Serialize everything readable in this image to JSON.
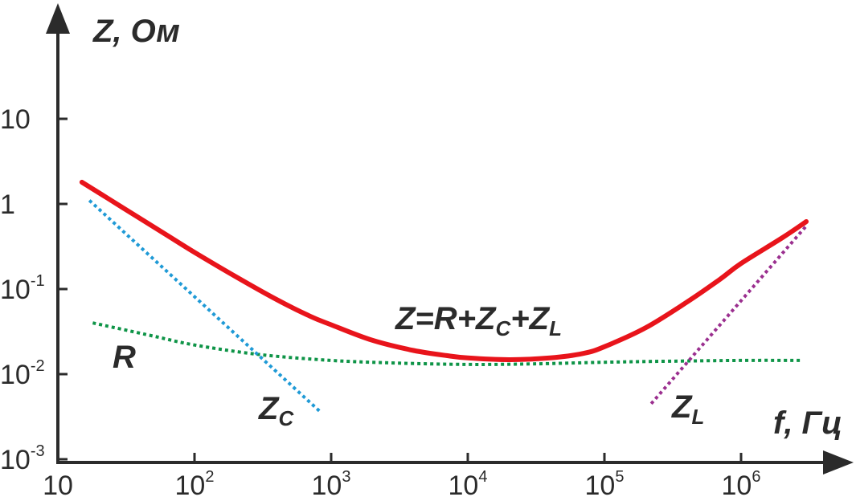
{
  "chart_data": {
    "type": "line",
    "title": "",
    "xlabel": "f, Гц",
    "ylabel": "Z, Ом",
    "x_scale": "log",
    "y_scale": "log",
    "xlim": [
      10,
      3000000
    ],
    "ylim": [
      0.001,
      200
    ],
    "x_ticks": [
      {
        "value": 10,
        "base": "10",
        "exp": ""
      },
      {
        "value": 100,
        "base": "10",
        "exp": "2"
      },
      {
        "value": 1000,
        "base": "10",
        "exp": "3"
      },
      {
        "value": 10000,
        "base": "10",
        "exp": "4"
      },
      {
        "value": 100000,
        "base": "10",
        "exp": "5"
      },
      {
        "value": 1000000,
        "base": "10",
        "exp": "6"
      }
    ],
    "y_ticks": [
      {
        "value": 10,
        "base": "10",
        "exp": ""
      },
      {
        "value": 1,
        "base": "1",
        "exp": ""
      },
      {
        "value": 0.1,
        "base": "10",
        "exp": "-1"
      },
      {
        "value": 0.01,
        "base": "10",
        "exp": "-2"
      },
      {
        "value": 0.001,
        "base": "10",
        "exp": "-3"
      }
    ],
    "grid": false,
    "legend": "none",
    "series": [
      {
        "name": "Z=R+ZC+ZL",
        "label_main": "Z=R+Z",
        "label_sub1": "C",
        "label_mid": "+Z",
        "label_sub2": "L",
        "style": "solid",
        "color": "#e8141b",
        "x": [
          15,
          30,
          60,
          100,
          200,
          400,
          700,
          1000,
          2000,
          4000,
          7000,
          10000,
          20000,
          40000,
          70000,
          100000,
          200000,
          400000,
          700000,
          1000000,
          2000000,
          3000000
        ],
        "y": [
          1.8,
          0.9,
          0.45,
          0.27,
          0.14,
          0.075,
          0.048,
          0.038,
          0.025,
          0.019,
          0.0165,
          0.0155,
          0.0148,
          0.0155,
          0.0175,
          0.021,
          0.035,
          0.07,
          0.13,
          0.2,
          0.4,
          0.62
        ]
      },
      {
        "name": "R",
        "style": "dotted",
        "color": "#0e9447",
        "x": [
          18,
          50,
          100,
          300,
          1000,
          3000,
          10000,
          30000,
          100000,
          300000,
          1000000,
          2800000
        ],
        "y": [
          0.04,
          0.028,
          0.022,
          0.017,
          0.0145,
          0.0135,
          0.013,
          0.0132,
          0.0138,
          0.0142,
          0.0145,
          0.0145
        ]
      },
      {
        "name": "ZC",
        "label_main": "Z",
        "label_sub": "C",
        "style": "dotted",
        "color": "#1f9ad6",
        "x": [
          17,
          850
        ],
        "y": [
          1.1,
          0.0035
        ]
      },
      {
        "name": "ZL",
        "label_main": "Z",
        "label_sub": "L",
        "style": "dotted",
        "color": "#9b2f8f",
        "x": [
          220000,
          3000000
        ],
        "y": [
          0.0045,
          0.55
        ]
      }
    ]
  }
}
